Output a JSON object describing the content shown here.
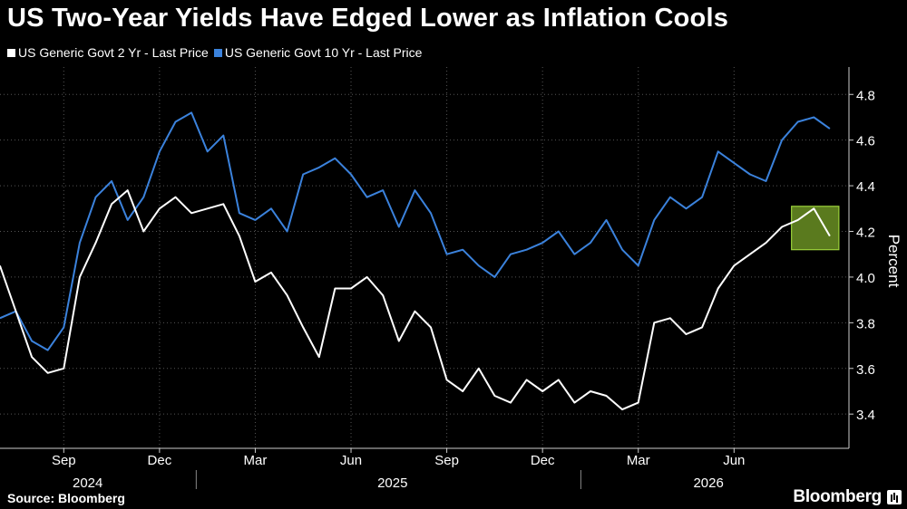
{
  "title": "US Two-Year Yields Have Edged Lower as Inflation Cools",
  "source": "Source: Bloomberg",
  "brand": "Bloomberg",
  "colors": {
    "two_year": "#ffffff",
    "ten_year": "#3b82dc",
    "highlight_fill": "#5a7a1e",
    "highlight_stroke": "#9bd13a"
  },
  "chart_data": {
    "type": "line",
    "ylabel": "Percent",
    "ylim": [
      3.25,
      4.92
    ],
    "yticks": [
      3.4,
      3.6,
      3.8,
      4.0,
      4.2,
      4.4,
      4.6,
      4.8
    ],
    "month_ticks": [
      {
        "label": "Sep",
        "index": 2
      },
      {
        "label": "Dec",
        "index": 5
      },
      {
        "label": "Mar",
        "index": 8
      },
      {
        "label": "Jun",
        "index": 11
      },
      {
        "label": "Sep",
        "index": 14
      },
      {
        "label": "Dec",
        "index": 17
      },
      {
        "label": "Mar",
        "index": 20
      },
      {
        "label": "Jun",
        "index": 23
      }
    ],
    "year_labels": [
      {
        "label": "2024",
        "index": 2.75
      },
      {
        "label": "2025",
        "index": 12.3
      },
      {
        "label": "2026",
        "index": 22.2
      }
    ],
    "year_dividers": [
      6.15,
      18.2
    ],
    "x_range": [
      0,
      26.6
    ],
    "series": [
      {
        "name": "US Generic Govt 2 Yr - Last Price",
        "color": "#ffffff",
        "x": [
          0,
          0.5,
          1,
          1.5,
          2,
          2.5,
          3,
          3.5,
          4,
          4.5,
          5,
          5.5,
          6,
          6.5,
          7,
          7.5,
          8,
          8.5,
          9,
          9.5,
          10,
          10.5,
          11,
          11.5,
          12,
          12.5,
          13,
          13.5,
          14,
          14.5,
          15,
          15.5,
          16,
          16.5,
          17,
          17.5,
          18,
          18.5,
          19,
          19.5,
          20,
          20.5,
          21,
          21.5,
          22,
          22.5,
          23,
          23.5,
          24,
          24.5,
          25,
          25.5,
          26
        ],
        "values": [
          4.05,
          3.85,
          3.65,
          3.58,
          3.6,
          4.0,
          4.15,
          4.32,
          4.38,
          4.2,
          4.3,
          4.35,
          4.28,
          4.3,
          4.32,
          4.18,
          3.98,
          4.02,
          3.92,
          3.78,
          3.65,
          3.95,
          3.95,
          4.0,
          3.92,
          3.72,
          3.85,
          3.78,
          3.55,
          3.5,
          3.6,
          3.48,
          3.45,
          3.55,
          3.5,
          3.55,
          3.45,
          3.5,
          3.48,
          3.42,
          3.45,
          3.8,
          3.82,
          3.75,
          3.78,
          3.95,
          4.05,
          4.1,
          4.15,
          4.22,
          4.25,
          4.3,
          4.18
        ]
      },
      {
        "name": "US Generic Govt 10 Yr - Last Price",
        "color": "#3b82dc",
        "x": [
          0,
          0.5,
          1,
          1.5,
          2,
          2.5,
          3,
          3.5,
          4,
          4.5,
          5,
          5.5,
          6,
          6.5,
          7,
          7.5,
          8,
          8.5,
          9,
          9.5,
          10,
          10.5,
          11,
          11.5,
          12,
          12.5,
          13,
          13.5,
          14,
          14.5,
          15,
          15.5,
          16,
          16.5,
          17,
          17.5,
          18,
          18.5,
          19,
          19.5,
          20,
          20.5,
          21,
          21.5,
          22,
          22.5,
          23,
          23.5,
          24,
          24.5,
          25,
          25.5,
          26
        ],
        "values": [
          3.82,
          3.85,
          3.72,
          3.68,
          3.78,
          4.15,
          4.35,
          4.42,
          4.25,
          4.35,
          4.55,
          4.68,
          4.72,
          4.55,
          4.62,
          4.28,
          4.25,
          4.3,
          4.2,
          4.45,
          4.48,
          4.52,
          4.45,
          4.35,
          4.38,
          4.22,
          4.38,
          4.28,
          4.1,
          4.12,
          4.05,
          4.0,
          4.1,
          4.12,
          4.15,
          4.2,
          4.1,
          4.15,
          4.25,
          4.12,
          4.05,
          4.25,
          4.35,
          4.3,
          4.35,
          4.55,
          4.5,
          4.45,
          4.42,
          4.6,
          4.68,
          4.7,
          4.65
        ]
      }
    ]
  }
}
